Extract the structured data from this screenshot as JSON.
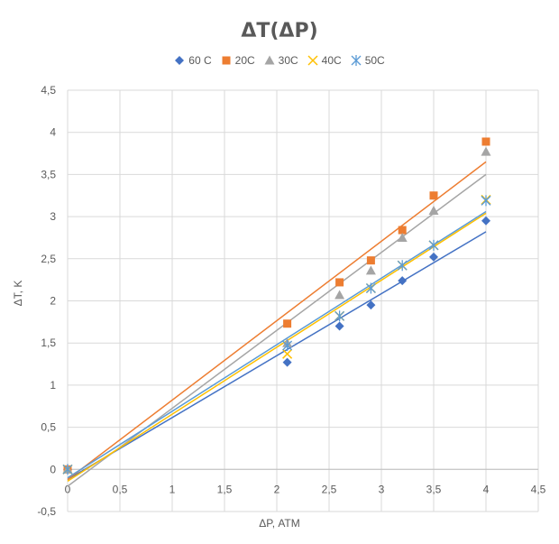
{
  "chart_data": {
    "type": "scatter",
    "title": "ΔT(ΔP)",
    "xlabel": "ΔP, АТМ",
    "ylabel": "ΔT, K",
    "xlim": [
      0,
      4.5
    ],
    "ylim": [
      -0.5,
      4.5
    ],
    "x_ticks": [
      "0",
      "0,5",
      "1",
      "1,5",
      "2",
      "2,5",
      "3",
      "3,5",
      "4",
      "4,5"
    ],
    "y_ticks": [
      "-0,5",
      "0",
      "0,5",
      "1",
      "1,5",
      "2",
      "2,5",
      "3",
      "3,5",
      "4",
      "4,5"
    ],
    "grid": true,
    "legend_position": "top",
    "series": [
      {
        "name": "60 C",
        "color": "#4472C4",
        "marker": "diamond",
        "x": [
          0,
          2.1,
          2.6,
          2.9,
          3.2,
          3.5,
          4.0
        ],
        "y": [
          0,
          1.27,
          1.7,
          1.95,
          2.24,
          2.52,
          2.95
        ],
        "trendline": [
          [
            0,
            -0.12
          ],
          [
            4.0,
            2.82
          ]
        ]
      },
      {
        "name": "20C",
        "color": "#ED7D31",
        "marker": "square",
        "x": [
          0,
          2.1,
          2.6,
          2.9,
          3.2,
          3.5,
          4.0
        ],
        "y": [
          0,
          1.73,
          2.22,
          2.48,
          2.84,
          3.25,
          3.89
        ],
        "trendline": [
          [
            0,
            -0.12
          ],
          [
            4.0,
            3.65
          ]
        ]
      },
      {
        "name": "30C",
        "color": "#A5A5A5",
        "marker": "triangle",
        "x": [
          0,
          2.1,
          2.6,
          2.9,
          3.2,
          3.5,
          4.0
        ],
        "y": [
          0,
          1.5,
          2.07,
          2.36,
          2.75,
          3.07,
          3.77
        ],
        "trendline": [
          [
            0,
            -0.2
          ],
          [
            4.0,
            3.5
          ]
        ]
      },
      {
        "name": "40C",
        "color": "#FFC000",
        "marker": "x",
        "x": [
          0,
          2.1,
          2.6,
          2.9,
          3.2,
          3.5,
          4.0
        ],
        "y": [
          0,
          1.37,
          1.82,
          2.15,
          2.42,
          2.66,
          3.2
        ],
        "trendline": [
          [
            0,
            -0.14
          ],
          [
            4.0,
            3.04
          ]
        ]
      },
      {
        "name": "50C",
        "color": "#5B9BD5",
        "marker": "asterisk",
        "x": [
          0,
          2.1,
          2.6,
          2.9,
          3.2,
          3.5,
          4.0
        ],
        "y": [
          0,
          1.47,
          1.82,
          2.15,
          2.42,
          2.66,
          3.19
        ],
        "trendline": [
          [
            0,
            -0.1
          ],
          [
            4.0,
            3.06
          ]
        ]
      }
    ]
  }
}
